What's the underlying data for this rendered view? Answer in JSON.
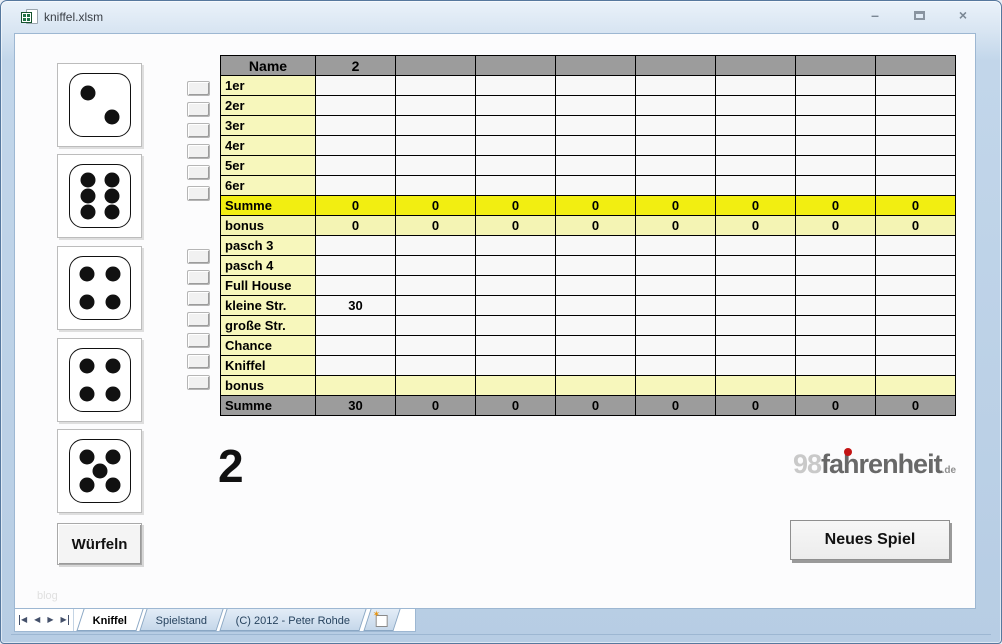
{
  "window": {
    "title": "kniffel.xlsm",
    "minimize_glyph": "–",
    "close_glyph": "×"
  },
  "dice": {
    "values": [
      2,
      6,
      4,
      4,
      5
    ]
  },
  "roll_button": {
    "label": "Würfeln"
  },
  "new_game_button": {
    "label": "Neues Spiel"
  },
  "player_indicator": "2",
  "faint_text": "blog",
  "logo": {
    "prefix": "98",
    "name": "fahrenheit",
    "tld": ".de"
  },
  "table": {
    "columns": {
      "label_header": "Name",
      "player_headers": [
        "2",
        "",
        "",
        "",
        "",
        "",
        "",
        ""
      ]
    },
    "rows": [
      {
        "label": "1er",
        "type": "entry",
        "button": true,
        "values": [
          "",
          "",
          "",
          "",
          "",
          "",
          "",
          ""
        ]
      },
      {
        "label": "2er",
        "type": "entry",
        "button": true,
        "values": [
          "",
          "",
          "",
          "",
          "",
          "",
          "",
          ""
        ]
      },
      {
        "label": "3er",
        "type": "entry",
        "button": true,
        "values": [
          "",
          "",
          "",
          "",
          "",
          "",
          "",
          ""
        ]
      },
      {
        "label": "4er",
        "type": "entry",
        "button": true,
        "values": [
          "",
          "",
          "",
          "",
          "",
          "",
          "",
          ""
        ]
      },
      {
        "label": "5er",
        "type": "entry",
        "button": true,
        "values": [
          "",
          "",
          "",
          "",
          "",
          "",
          "",
          ""
        ]
      },
      {
        "label": "6er",
        "type": "entry",
        "button": true,
        "values": [
          "",
          "",
          "",
          "",
          "",
          "",
          "",
          ""
        ]
      },
      {
        "label": "Summe",
        "type": "sum_top",
        "button": false,
        "values": [
          "0",
          "0",
          "0",
          "0",
          "0",
          "0",
          "0",
          "0"
        ]
      },
      {
        "label": "bonus",
        "type": "bonus_values",
        "button": false,
        "values": [
          "0",
          "0",
          "0",
          "0",
          "0",
          "0",
          "0",
          "0"
        ]
      },
      {
        "label": "pasch 3",
        "type": "entry",
        "button": true,
        "values": [
          "",
          "",
          "",
          "",
          "",
          "",
          "",
          ""
        ]
      },
      {
        "label": "pasch 4",
        "type": "entry",
        "button": true,
        "values": [
          "",
          "",
          "",
          "",
          "",
          "",
          "",
          ""
        ]
      },
      {
        "label": "Full House",
        "type": "entry",
        "button": true,
        "values": [
          "",
          "",
          "",
          "",
          "",
          "",
          "",
          ""
        ]
      },
      {
        "label": "kleine Str.",
        "type": "entry",
        "button": true,
        "values": [
          "30",
          "",
          "",
          "",
          "",
          "",
          "",
          ""
        ]
      },
      {
        "label": "große Str.",
        "type": "entry",
        "button": true,
        "values": [
          "",
          "",
          "",
          "",
          "",
          "",
          "",
          ""
        ]
      },
      {
        "label": "Chance",
        "type": "entry",
        "button": true,
        "values": [
          "",
          "",
          "",
          "",
          "",
          "",
          "",
          ""
        ]
      },
      {
        "label": "Kniffel",
        "type": "entry",
        "button": true,
        "values": [
          "",
          "",
          "",
          "",
          "",
          "",
          "",
          ""
        ]
      },
      {
        "label": "bonus",
        "type": "bonus_empty",
        "button": false,
        "values": [
          "",
          "",
          "",
          "",
          "",
          "",
          "",
          ""
        ]
      },
      {
        "label": "Summe",
        "type": "sum_bottom",
        "button": false,
        "values": [
          "30",
          "0",
          "0",
          "0",
          "0",
          "0",
          "0",
          "0"
        ]
      }
    ]
  },
  "sheet_bar": {
    "nav_buttons": [
      {
        "name": "first-sheet-button",
        "glyph": "◀",
        "bar": "l"
      },
      {
        "name": "prev-sheet-button",
        "glyph": "◀"
      },
      {
        "name": "next-sheet-button",
        "glyph": "▶"
      },
      {
        "name": "last-sheet-button",
        "glyph": "▶",
        "bar": "r"
      }
    ],
    "tabs": [
      {
        "label": "Kniffel",
        "active": true
      },
      {
        "label": "Spielstand",
        "active": false
      },
      {
        "label": "(C) 2012 - Peter Rohde",
        "active": false
      }
    ]
  },
  "colors": {
    "header_gray": "#9c9c9c",
    "light_yellow": "#f7f7bc",
    "bright_yellow": "#f2ee11",
    "logo_red": "#c41414"
  }
}
